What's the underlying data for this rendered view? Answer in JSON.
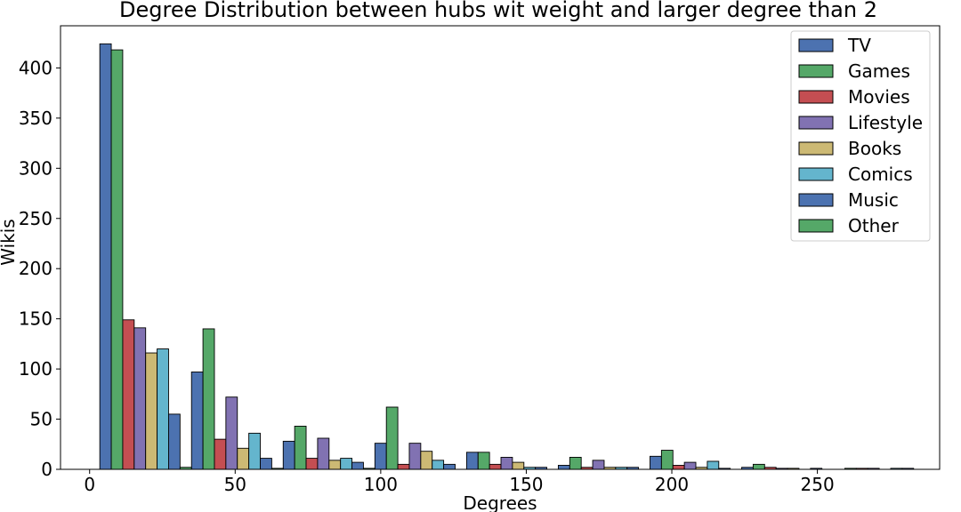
{
  "chart_data": {
    "type": "bar",
    "title": "Degree Distribution between hubs wit weight and larger degree than 2",
    "xlabel": "Degrees",
    "ylabel": "Wikis",
    "xlim": [
      -10,
      292
    ],
    "ylim": [
      0,
      442
    ],
    "xticks": [
      0,
      50,
      100,
      150,
      200,
      250
    ],
    "yticks": [
      0,
      50,
      100,
      150,
      200,
      250,
      300,
      350,
      400
    ],
    "bin_starts": [
      3.5,
      35,
      66.5,
      98,
      129.5,
      161,
      192.5,
      224,
      255.5
    ],
    "bin_width": 31.5,
    "legend_position": "top-right",
    "series": [
      {
        "name": "TV",
        "color": "#4c72b0",
        "values": [
          424,
          97,
          28,
          26,
          17,
          4,
          13,
          2,
          0
        ]
      },
      {
        "name": "Games",
        "color": "#55a868",
        "values": [
          418,
          140,
          43,
          62,
          17,
          12,
          19,
          5,
          1
        ]
      },
      {
        "name": "Movies",
        "color": "#c44e52",
        "values": [
          149,
          30,
          11,
          5,
          5,
          2,
          4,
          2,
          1
        ]
      },
      {
        "name": "Lifestyle",
        "color": "#8172b2",
        "values": [
          141,
          72,
          31,
          26,
          12,
          9,
          7,
          1,
          1
        ]
      },
      {
        "name": "Books",
        "color": "#ccb974",
        "values": [
          116,
          21,
          9,
          18,
          7,
          2,
          2,
          1,
          0
        ]
      },
      {
        "name": "Comics",
        "color": "#64b5cd",
        "values": [
          120,
          36,
          11,
          9,
          2,
          2,
          8,
          0,
          1
        ]
      },
      {
        "name": "Music",
        "color": "#4c72b0",
        "values": [
          55,
          11,
          7,
          5,
          2,
          2,
          1,
          1,
          1
        ]
      },
      {
        "name": "Other",
        "color": "#55a868",
        "values": [
          2,
          1,
          1,
          0,
          0,
          0,
          0,
          0,
          0
        ]
      }
    ]
  }
}
